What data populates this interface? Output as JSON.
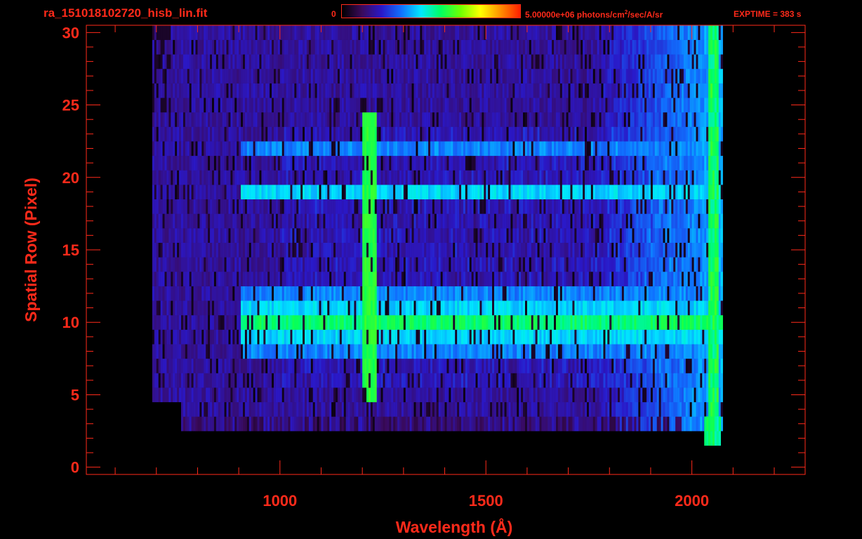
{
  "header": {
    "file_name": "ra_151018102720_hisb_lin.fit",
    "colorbar_min_label": "0",
    "colorbar_max_value": "5.00000e+06 photons/cm",
    "colorbar_max_sup": "2",
    "colorbar_max_rest": "/sec/A/sr",
    "exptime_label": "EXPTIME = 383 s"
  },
  "colors": {
    "text_and_axes": "#ff2a1a",
    "background": "#000000"
  },
  "colorbar": {
    "stops": [
      "#000000",
      "#3a0a5a",
      "#2a18c8",
      "#1070ff",
      "#00e8ff",
      "#00ff60",
      "#70ff00",
      "#ffff00",
      "#ff9000",
      "#ff2000"
    ]
  },
  "chart_data": {
    "type": "heatmap",
    "title": "ra_151018102720_hisb_lin.fit",
    "xlabel": "Wavelength (Å)",
    "ylabel": "Spatial Row (Pixel)",
    "xlim": [
      530,
      2275
    ],
    "ylim": [
      -0.5,
      30.5
    ],
    "x_ticks": [
      1000,
      1500,
      2000
    ],
    "x_tick_labels": [
      "1000",
      "1500",
      "2000"
    ],
    "y_ticks": [
      0,
      5,
      10,
      15,
      20,
      25,
      30
    ],
    "y_tick_labels": [
      "0",
      "5",
      "10",
      "15",
      "20",
      "25",
      "30"
    ],
    "colorbar_range": [
      0,
      5000000
    ],
    "colorbar_units": "photons/cm^2/sec/A/sr",
    "detector_extent_wavelength": [
      690,
      2075
    ],
    "bright_rows": [
      {
        "row": 10,
        "level": "highest"
      },
      {
        "row": 9,
        "level": "high"
      },
      {
        "row": 11,
        "level": "high"
      },
      {
        "row": 19,
        "level": "high"
      },
      {
        "row": 22,
        "level": "medium"
      },
      {
        "row": 8,
        "level": "medium"
      },
      {
        "row": 12,
        "level": "medium"
      }
    ],
    "emission_line": {
      "wavelength": 1216,
      "rows": [
        5,
        24
      ]
    },
    "grid": false
  }
}
